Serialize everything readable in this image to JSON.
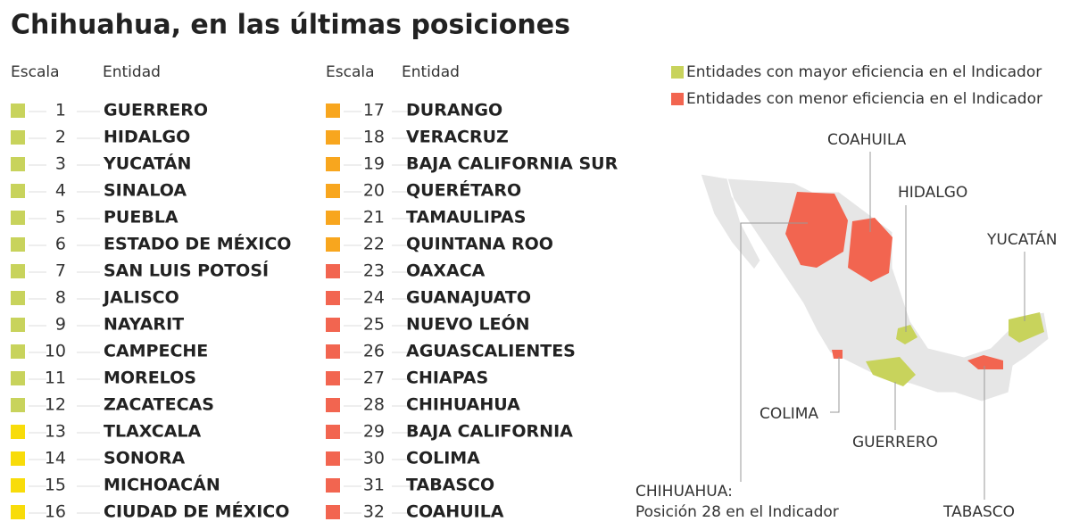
{
  "title": "Chihuahua, en las últimas posiciones",
  "columns": [
    {
      "headers": [
        "Escala",
        "Entidad"
      ],
      "rows": [
        {
          "rank": 1,
          "name": "GUERRERO",
          "color": "#c8d35c"
        },
        {
          "rank": 2,
          "name": "HIDALGO",
          "color": "#c8d35c"
        },
        {
          "rank": 3,
          "name": "YUCATÁN",
          "color": "#c8d35c"
        },
        {
          "rank": 4,
          "name": "SINALOA",
          "color": "#c8d35c"
        },
        {
          "rank": 5,
          "name": "PUEBLA",
          "color": "#c8d35c"
        },
        {
          "rank": 6,
          "name": "ESTADO DE MÉXICO",
          "color": "#c8d35c"
        },
        {
          "rank": 7,
          "name": "SAN LUIS POTOSÍ",
          "color": "#c8d35c"
        },
        {
          "rank": 8,
          "name": "JALISCO",
          "color": "#c8d35c"
        },
        {
          "rank": 9,
          "name": "NAYARIT",
          "color": "#c8d35c"
        },
        {
          "rank": 10,
          "name": "CAMPECHE",
          "color": "#c8d35c"
        },
        {
          "rank": 11,
          "name": "MORELOS",
          "color": "#c8d35c"
        },
        {
          "rank": 12,
          "name": "ZACATECAS",
          "color": "#c8d35c"
        },
        {
          "rank": 13,
          "name": "TLAXCALA",
          "color": "#f8dc0a"
        },
        {
          "rank": 14,
          "name": "SONORA",
          "color": "#f8dc0a"
        },
        {
          "rank": 15,
          "name": "MICHOACÁN",
          "color": "#f8dc0a"
        },
        {
          "rank": 16,
          "name": "CIUDAD DE MÉXICO",
          "color": "#f8dc0a"
        }
      ]
    },
    {
      "headers": [
        "Escala",
        "Entidad"
      ],
      "rows": [
        {
          "rank": 17,
          "name": "DURANGO",
          "color": "#f8a61e"
        },
        {
          "rank": 18,
          "name": "VERACRUZ",
          "color": "#f8a61e"
        },
        {
          "rank": 19,
          "name": "BAJA CALIFORNIA SUR",
          "color": "#f8a61e"
        },
        {
          "rank": 20,
          "name": "QUERÉTARO",
          "color": "#f8a61e"
        },
        {
          "rank": 21,
          "name": "TAMAULIPAS",
          "color": "#f8a61e"
        },
        {
          "rank": 22,
          "name": "QUINTANA ROO",
          "color": "#f8a61e"
        },
        {
          "rank": 23,
          "name": "OAXACA",
          "color": "#f26550"
        },
        {
          "rank": 24,
          "name": "GUANAJUATO",
          "color": "#f26550"
        },
        {
          "rank": 25,
          "name": "NUEVO LEÓN",
          "color": "#f26550"
        },
        {
          "rank": 26,
          "name": "AGUASCALIENTES",
          "color": "#f26550"
        },
        {
          "rank": 27,
          "name": "CHIAPAS",
          "color": "#f26550"
        },
        {
          "rank": 28,
          "name": "CHIHUAHUA",
          "color": "#f26550"
        },
        {
          "rank": 29,
          "name": "BAJA CALIFORNIA",
          "color": "#f26550"
        },
        {
          "rank": 30,
          "name": "COLIMA",
          "color": "#f26550"
        },
        {
          "rank": 31,
          "name": "TABASCO",
          "color": "#f26550"
        },
        {
          "rank": 32,
          "name": "COAHUILA",
          "color": "#f26550"
        }
      ]
    }
  ],
  "legend": [
    {
      "label": "Entidades con mayor eficiencia en el Indicador",
      "color": "#c8d35c"
    },
    {
      "label": "Entidades con menor eficiencia en el Indicador",
      "color": "#f26550"
    }
  ],
  "map_labels": {
    "coahuila": "COAHUILA",
    "hidalgo": "HIDALGO",
    "yucatan": "YUCATÁN",
    "colima": "COLIMA",
    "guerrero": "GUERRERO",
    "tabasco": "TABASCO",
    "chihuahua": "CHIHUAHUA:",
    "chihuahua_note": "Posición 28 en el Indicador"
  }
}
